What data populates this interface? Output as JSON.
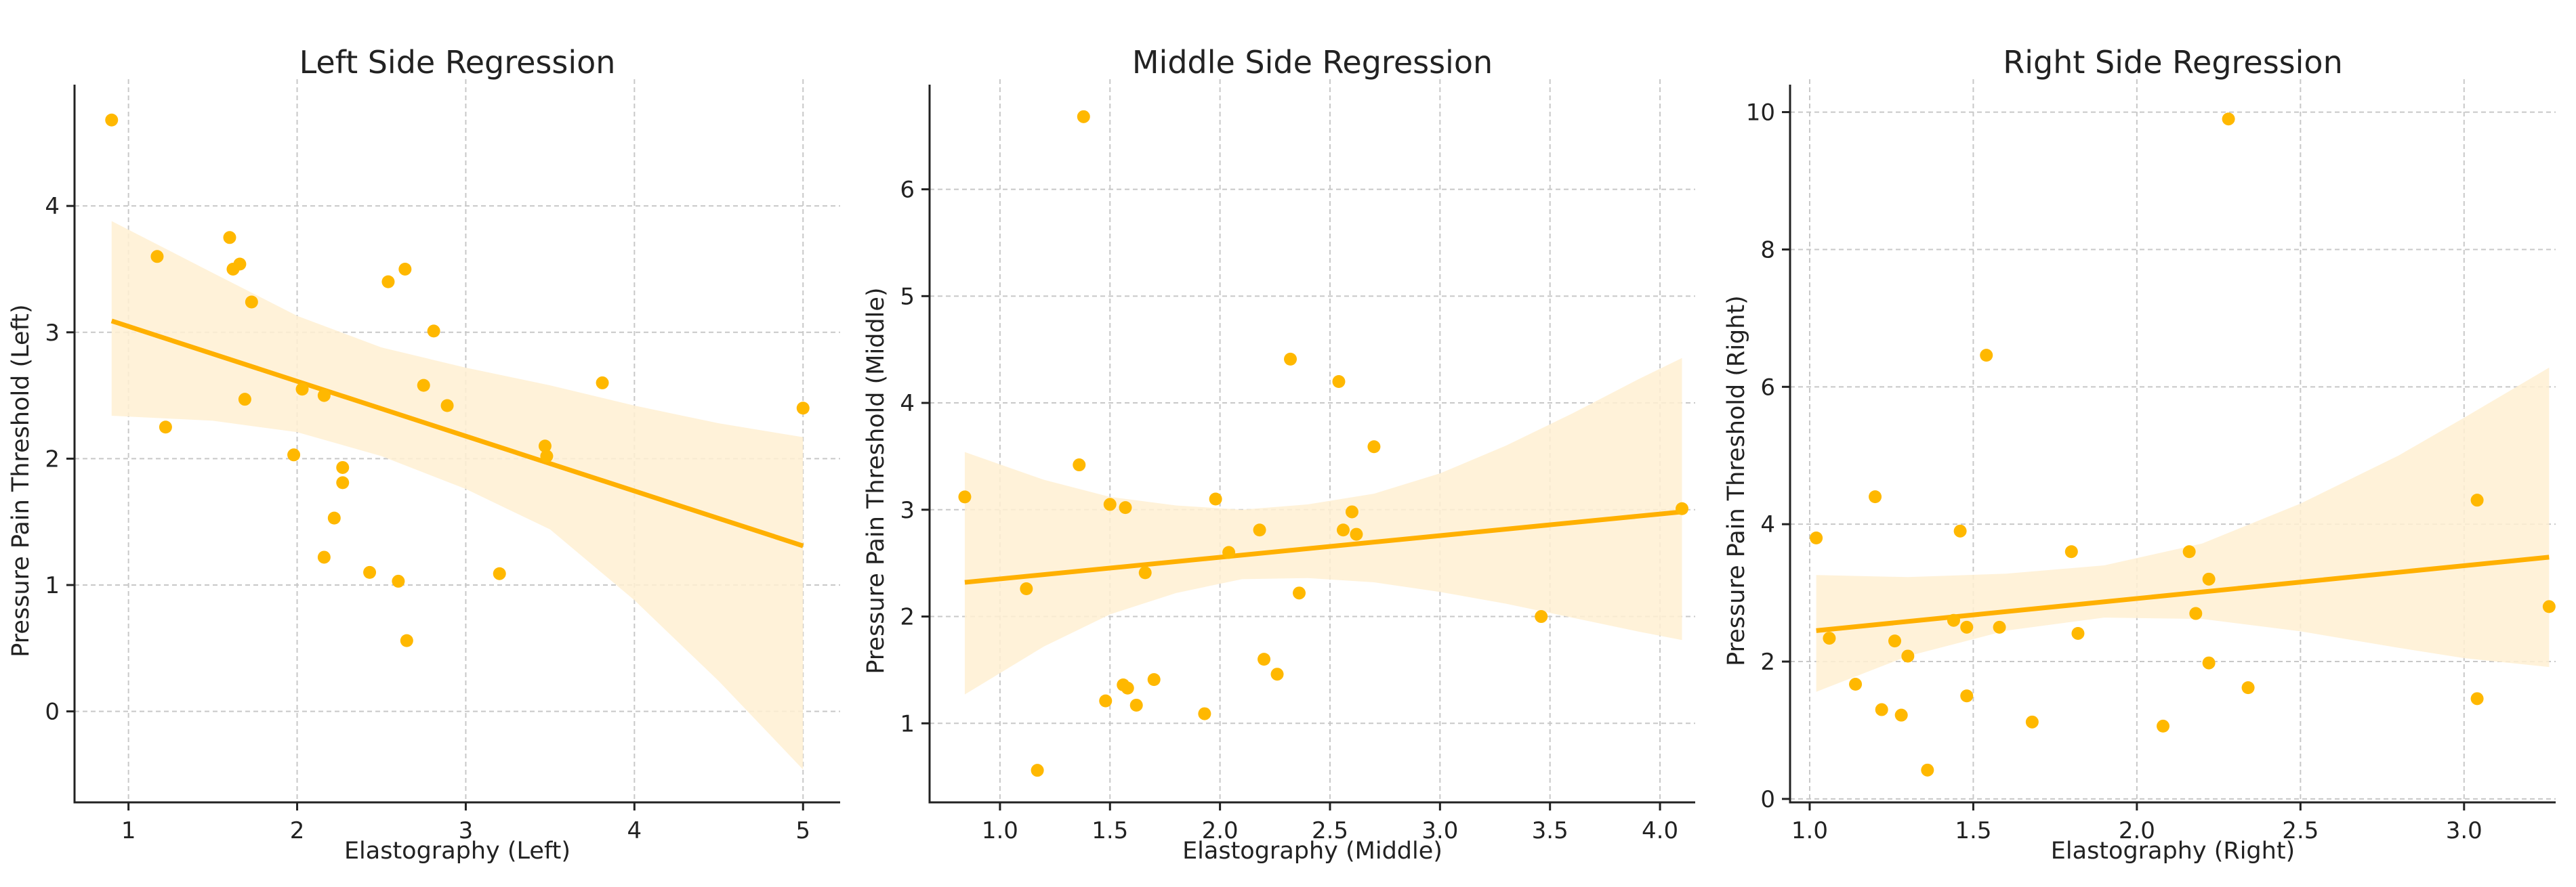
{
  "figure": {
    "point_color": "#FFB800",
    "line_color": "#FFB000",
    "band_color": "#FFF0D2"
  },
  "chart_data": [
    {
      "type": "scatter",
      "title": "Left Side Regression",
      "xlabel": "Elastography (Left)",
      "ylabel": "Pressure Pain Threshold (Left)",
      "xlim": [
        0.68,
        5.22
      ],
      "ylim": [
        -0.72,
        4.96
      ],
      "xticks": [
        1,
        2,
        3,
        4,
        5
      ],
      "xtick_labels": [
        "1",
        "2",
        "3",
        "4",
        "5"
      ],
      "yticks": [
        0,
        1,
        2,
        3,
        4
      ],
      "ytick_labels": [
        "0",
        "1",
        "2",
        "3",
        "4"
      ],
      "points": [
        [
          0.9,
          4.68
        ],
        [
          1.17,
          3.6
        ],
        [
          1.22,
          2.25
        ],
        [
          1.6,
          3.75
        ],
        [
          1.62,
          3.5
        ],
        [
          1.66,
          3.54
        ],
        [
          1.69,
          2.47
        ],
        [
          1.73,
          3.24
        ],
        [
          1.98,
          2.03
        ],
        [
          2.03,
          2.55
        ],
        [
          2.16,
          2.5
        ],
        [
          2.16,
          1.22
        ],
        [
          2.22,
          1.53
        ],
        [
          2.27,
          1.93
        ],
        [
          2.27,
          1.81
        ],
        [
          2.43,
          1.1
        ],
        [
          2.54,
          3.4
        ],
        [
          2.6,
          1.03
        ],
        [
          2.64,
          3.5
        ],
        [
          2.65,
          0.56
        ],
        [
          2.75,
          2.58
        ],
        [
          2.81,
          3.01
        ],
        [
          2.89,
          2.42
        ],
        [
          3.2,
          1.09
        ],
        [
          3.47,
          2.1
        ],
        [
          3.48,
          2.02
        ],
        [
          3.81,
          2.6
        ],
        [
          5.0,
          2.4
        ]
      ],
      "regression": {
        "x": [
          0.9,
          5.0
        ],
        "y": [
          3.09,
          1.31
        ]
      },
      "ci_band": {
        "x": [
          0.9,
          1.5,
          2.0,
          2.5,
          3.0,
          3.5,
          4.0,
          4.5,
          5.0
        ],
        "upper": [
          3.88,
          3.47,
          3.13,
          2.88,
          2.72,
          2.58,
          2.42,
          2.28,
          2.17
        ],
        "lower": [
          2.34,
          2.3,
          2.21,
          2.02,
          1.76,
          1.44,
          0.88,
          0.24,
          -0.46
        ]
      }
    },
    {
      "type": "scatter",
      "title": "Middle Side Regression",
      "xlabel": "Elastography (Middle)",
      "ylabel": "Pressure Pain Threshold (Middle)",
      "xlim": [
        0.68,
        4.16
      ],
      "ylim": [
        0.26,
        6.98
      ],
      "xticks": [
        1.0,
        1.5,
        2.0,
        2.5,
        3.0,
        3.5,
        4.0
      ],
      "xtick_labels": [
        "1.0",
        "1.5",
        "2.0",
        "2.5",
        "3.0",
        "3.5",
        "4.0"
      ],
      "yticks": [
        1,
        2,
        3,
        4,
        5,
        6
      ],
      "ytick_labels": [
        "1",
        "2",
        "3",
        "4",
        "5",
        "6"
      ],
      "points": [
        [
          0.84,
          3.12
        ],
        [
          1.12,
          2.26
        ],
        [
          1.17,
          0.56
        ],
        [
          1.36,
          3.42
        ],
        [
          1.38,
          6.68
        ],
        [
          1.48,
          1.21
        ],
        [
          1.5,
          3.05
        ],
        [
          1.56,
          1.36
        ],
        [
          1.57,
          3.02
        ],
        [
          1.58,
          1.33
        ],
        [
          1.62,
          1.17
        ],
        [
          1.66,
          2.41
        ],
        [
          1.7,
          1.41
        ],
        [
          1.93,
          1.09
        ],
        [
          1.98,
          3.1
        ],
        [
          2.04,
          2.6
        ],
        [
          2.18,
          2.81
        ],
        [
          2.2,
          1.6
        ],
        [
          2.26,
          1.46
        ],
        [
          2.32,
          4.41
        ],
        [
          2.36,
          2.22
        ],
        [
          2.54,
          4.2
        ],
        [
          2.56,
          2.81
        ],
        [
          2.6,
          2.98
        ],
        [
          2.62,
          2.77
        ],
        [
          2.7,
          3.59
        ],
        [
          3.46,
          2.0
        ],
        [
          4.1,
          3.01
        ]
      ],
      "regression": {
        "x": [
          0.84,
          4.1
        ],
        "y": [
          2.32,
          2.98
        ]
      },
      "ci_band": {
        "x": [
          0.84,
          1.2,
          1.5,
          1.8,
          2.1,
          2.4,
          2.7,
          3.0,
          3.3,
          3.6,
          3.9,
          4.1
        ],
        "upper": [
          3.54,
          3.28,
          3.12,
          3.04,
          3.0,
          3.05,
          3.15,
          3.34,
          3.6,
          3.9,
          4.22,
          4.42
        ],
        "lower": [
          1.27,
          1.72,
          2.02,
          2.22,
          2.35,
          2.36,
          2.32,
          2.23,
          2.12,
          1.99,
          1.86,
          1.78
        ]
      }
    },
    {
      "type": "scatter",
      "title": "Right Side Regression",
      "xlabel": "Elastography (Right)",
      "ylabel": "Pressure Pain Threshold (Right)",
      "xlim": [
        0.94,
        3.28
      ],
      "ylim": [
        -0.05,
        10.4
      ],
      "xticks": [
        1.0,
        1.5,
        2.0,
        2.5,
        3.0
      ],
      "xtick_labels": [
        "1.0",
        "1.5",
        "2.0",
        "2.5",
        "3.0"
      ],
      "yticks": [
        0,
        2,
        4,
        6,
        8,
        10
      ],
      "ytick_labels": [
        "0",
        "2",
        "4",
        "6",
        "8",
        "10"
      ],
      "points": [
        [
          1.02,
          3.8
        ],
        [
          1.06,
          2.34
        ],
        [
          1.14,
          1.67
        ],
        [
          1.2,
          4.4
        ],
        [
          1.22,
          1.3
        ],
        [
          1.26,
          2.3
        ],
        [
          1.28,
          1.22
        ],
        [
          1.3,
          2.08
        ],
        [
          1.36,
          0.42
        ],
        [
          1.44,
          2.6
        ],
        [
          1.46,
          3.9
        ],
        [
          1.48,
          2.5
        ],
        [
          1.48,
          1.5
        ],
        [
          1.54,
          6.46
        ],
        [
          1.58,
          2.5
        ],
        [
          1.68,
          1.12
        ],
        [
          1.8,
          3.6
        ],
        [
          1.82,
          2.41
        ],
        [
          2.08,
          1.06
        ],
        [
          2.16,
          3.6
        ],
        [
          2.18,
          2.7
        ],
        [
          2.22,
          3.2
        ],
        [
          2.22,
          1.98
        ],
        [
          2.28,
          9.9
        ],
        [
          2.34,
          1.62
        ],
        [
          3.04,
          4.35
        ],
        [
          3.04,
          1.46
        ],
        [
          3.26,
          2.8
        ]
      ],
      "regression": {
        "x": [
          1.02,
          3.26
        ],
        "y": [
          2.45,
          3.52
        ]
      },
      "ci_band": {
        "x": [
          1.02,
          1.3,
          1.6,
          1.9,
          2.2,
          2.5,
          2.8,
          3.0,
          3.26
        ],
        "upper": [
          3.26,
          3.23,
          3.28,
          3.4,
          3.72,
          4.3,
          5.0,
          5.55,
          6.28
        ],
        "lower": [
          1.56,
          2.08,
          2.45,
          2.64,
          2.62,
          2.44,
          2.2,
          2.05,
          1.92
        ]
      }
    }
  ]
}
